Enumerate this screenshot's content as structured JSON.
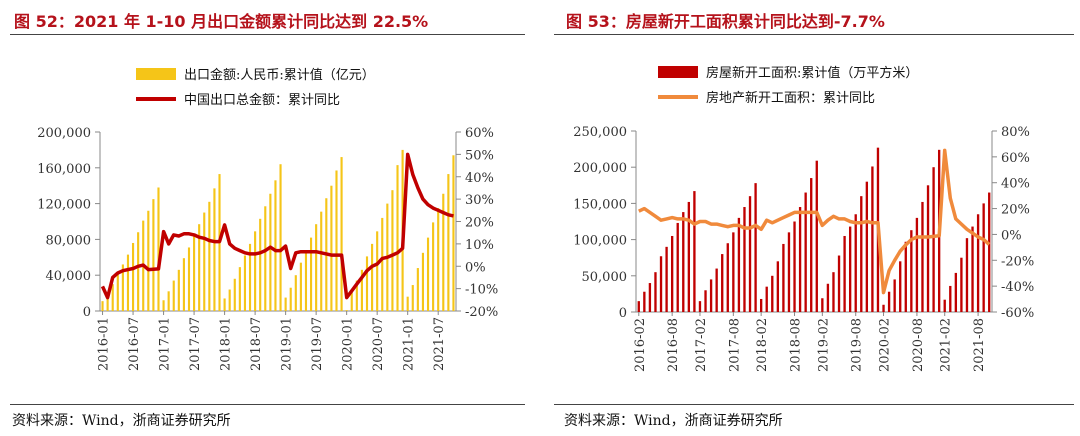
{
  "chart_data": [
    {
      "type": "bar+line",
      "title": "图 52：2021 年 1-10 月出口金额累计同比达到 22.5%",
      "source": "资料来源：Wind，浙商证券研究所",
      "legend": [
        "出口金额:人民币:累计值（亿元）",
        "中国出口总金额：累计同比"
      ],
      "categories": [
        "2016-01",
        "2016-02",
        "2016-03",
        "2016-04",
        "2016-05",
        "2016-06",
        "2016-07",
        "2016-08",
        "2016-09",
        "2016-10",
        "2016-11",
        "2016-12",
        "2017-01",
        "2017-02",
        "2017-03",
        "2017-04",
        "2017-05",
        "2017-06",
        "2017-07",
        "2017-08",
        "2017-09",
        "2017-10",
        "2017-11",
        "2017-12",
        "2018-01",
        "2018-02",
        "2018-03",
        "2018-04",
        "2018-05",
        "2018-06",
        "2018-07",
        "2018-08",
        "2018-09",
        "2018-10",
        "2018-11",
        "2018-12",
        "2019-01",
        "2019-02",
        "2019-03",
        "2019-04",
        "2019-05",
        "2019-06",
        "2019-07",
        "2019-08",
        "2019-09",
        "2019-10",
        "2019-11",
        "2019-12",
        "2020-01",
        "2020-02",
        "2020-03",
        "2020-04",
        "2020-05",
        "2020-06",
        "2020-07",
        "2020-08",
        "2020-09",
        "2020-10",
        "2020-11",
        "2020-12",
        "2021-01",
        "2021-02",
        "2021-03",
        "2021-04",
        "2021-05",
        "2021-06",
        "2021-07",
        "2021-08",
        "2021-09",
        "2021-10"
      ],
      "xticks": [
        "2016-01",
        "2016-07",
        "2017-01",
        "2017-07",
        "2018-01",
        "2018-07",
        "2019-01",
        "2019-07",
        "2020-01",
        "2020-07",
        "2021-01",
        "2021-07"
      ],
      "bars": {
        "name": "出口金额:人民币:累计值（亿元）",
        "color": "#f5c518",
        "values": [
          11000,
          20000,
          30000,
          41000,
          52000,
          63000,
          76000,
          88000,
          101000,
          112000,
          125000,
          138000,
          12000,
          22000,
          34000,
          46000,
          59000,
          71000,
          84000,
          97000,
          110000,
          122000,
          137000,
          153000,
          14000,
          24000,
          36000,
          49000,
          62000,
          75000,
          89000,
          103000,
          117000,
          131000,
          146000,
          164000,
          15000,
          26000,
          40000,
          54000,
          68000,
          82000,
          97000,
          111000,
          126000,
          140000,
          157000,
          172000,
          1000,
          22000,
          34000,
          46000,
          61000,
          75000,
          89000,
          104000,
          120000,
          135000,
          163000,
          180000,
          16000,
          29000,
          48000,
          65000,
          82000,
          99000,
          115000,
          131000,
          153000,
          174000
        ]
      },
      "line": {
        "name": "中国出口总金额：累计同比",
        "color": "#c00000",
        "values": [
          -9,
          -14,
          -5,
          -3,
          -2,
          -1.5,
          -1,
          0,
          0.5,
          -1.5,
          -1.3,
          -1.2,
          15.5,
          10,
          14,
          13.5,
          14.5,
          14.5,
          14,
          13,
          12.5,
          11.5,
          11,
          11,
          18.5,
          10,
          8,
          7,
          6,
          5.5,
          5.5,
          6,
          7,
          8.5,
          7,
          7,
          9,
          -1,
          6,
          6.5,
          6.5,
          6.5,
          6.5,
          6,
          5.5,
          5,
          5,
          5,
          -14,
          -11,
          -8,
          -5,
          -2,
          0,
          1,
          3.5,
          4,
          5,
          6,
          8,
          50,
          41,
          35,
          30,
          27.5,
          26,
          25,
          24,
          23,
          22.5
        ]
      },
      "yleft": {
        "min": 0,
        "max": 200000,
        "ticks": [
          "0",
          "40,000",
          "80,000",
          "120,000",
          "160,000",
          "200,000"
        ]
      },
      "yright": {
        "min": -20,
        "max": 60,
        "ticks": [
          "-20%",
          "-10%",
          "0%",
          "10%",
          "20%",
          "30%",
          "40%",
          "50%",
          "60%"
        ]
      }
    },
    {
      "type": "bar+line",
      "title": "图 53：房屋新开工面积累计同比达到-7.7%",
      "source": "资料来源：Wind，浙商证券研究所",
      "legend": [
        "房屋新开工面积:累计值（万平方米）",
        "房地产新开工面积：累计同比"
      ],
      "categories": [
        "2016-02",
        "2016-03",
        "2016-04",
        "2016-05",
        "2016-06",
        "2016-07",
        "2016-08",
        "2016-09",
        "2016-10",
        "2016-11",
        "2016-12",
        "2017-02",
        "2017-03",
        "2017-04",
        "2017-05",
        "2017-06",
        "2017-07",
        "2017-08",
        "2017-09",
        "2017-10",
        "2017-11",
        "2017-12",
        "2018-02",
        "2018-03",
        "2018-04",
        "2018-05",
        "2018-06",
        "2018-07",
        "2018-08",
        "2018-09",
        "2018-10",
        "2018-11",
        "2018-12",
        "2019-02",
        "2019-03",
        "2019-04",
        "2019-05",
        "2019-06",
        "2019-07",
        "2019-08",
        "2019-09",
        "2019-10",
        "2019-11",
        "2019-12",
        "2020-02",
        "2020-03",
        "2020-04",
        "2020-05",
        "2020-06",
        "2020-07",
        "2020-08",
        "2020-09",
        "2020-10",
        "2020-11",
        "2020-12",
        "2021-02",
        "2021-03",
        "2021-04",
        "2021-05",
        "2021-06",
        "2021-07",
        "2021-08",
        "2021-09",
        "2021-10"
      ],
      "xticks": [
        "2016-02",
        "2016-08",
        "2017-02",
        "2017-08",
        "2018-02",
        "2018-08",
        "2019-02",
        "2019-08",
        "2020-02",
        "2020-08",
        "2021-02",
        "2021-08"
      ],
      "bars": {
        "name": "房屋新开工面积:累计值（万平方米）",
        "color": "#c00000",
        "values": [
          15000,
          28000,
          40000,
          55000,
          77000,
          90000,
          105000,
          123000,
          138000,
          152000,
          167000,
          15000,
          30000,
          45000,
          60000,
          80000,
          95000,
          110000,
          130000,
          145000,
          160000,
          178000,
          18000,
          35000,
          50000,
          70000,
          94000,
          110000,
          125000,
          145000,
          165000,
          185000,
          209000,
          19000,
          39000,
          55000,
          78000,
          105000,
          118000,
          135000,
          160000,
          180000,
          201000,
          227000,
          10000,
          28000,
          45000,
          70000,
          97000,
          113000,
          130000,
          152000,
          175000,
          200000,
          224000,
          17000,
          36000,
          54000,
          75000,
          102000,
          118000,
          135000,
          150000,
          165000
        ]
      },
      "line": {
        "name": "房地产新开工面积：累计同比",
        "color": "#f08a3c",
        "values": [
          18,
          20,
          17,
          14,
          11,
          12,
          13,
          12,
          12,
          11,
          8,
          10,
          10,
          8,
          8,
          7,
          6,
          7,
          7,
          5,
          5,
          7,
          4,
          11,
          9,
          11,
          13,
          15,
          17,
          17,
          17,
          17,
          17,
          7,
          11,
          14,
          12,
          12,
          10,
          9,
          9,
          10,
          9,
          9,
          -45,
          -28,
          -20,
          -13,
          -8,
          -4,
          -2,
          -2,
          -2,
          -1.5,
          -1,
          65,
          28,
          12,
          8,
          4,
          1,
          -2,
          -4,
          -7.7
        ]
      },
      "yleft": {
        "min": 0,
        "max": 250000,
        "ticks": [
          "0",
          "50,000",
          "100,000",
          "150,000",
          "200,000",
          "250,000"
        ]
      },
      "yright": {
        "min": -60,
        "max": 80,
        "ticks": [
          "-60%",
          "-40%",
          "-20%",
          "0%",
          "20%",
          "40%",
          "60%",
          "80%"
        ]
      }
    }
  ]
}
